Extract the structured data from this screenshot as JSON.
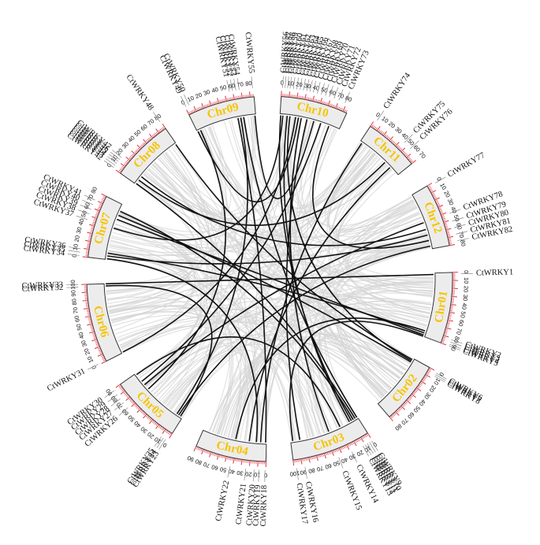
{
  "colors": {
    "chr_fill": "#ececec",
    "chr_stroke": "#333333",
    "chr_label": "#f5c400",
    "ticks": "#d9333f",
    "link_background": "#d4d4d4",
    "link_highlight": "#111111",
    "gene_line": "#888888"
  },
  "chromosomes": [
    {
      "name": "Chr01",
      "length": 90
    },
    {
      "name": "Chr02",
      "length": 80
    },
    {
      "name": "Chr03",
      "length": 100
    },
    {
      "name": "Chr04",
      "length": 90
    },
    {
      "name": "Chr05",
      "length": 90
    },
    {
      "name": "Chr06",
      "length": 100
    },
    {
      "name": "Chr07",
      "length": 80
    },
    {
      "name": "Chr08",
      "length": 80
    },
    {
      "name": "Chr09",
      "length": 85
    },
    {
      "name": "Chr10",
      "length": 85
    },
    {
      "name": "Chr11",
      "length": 70
    },
    {
      "name": "Chr12",
      "length": 80
    }
  ],
  "genes": [
    {
      "name": "CtWRKY1",
      "chr": "Chr01",
      "pos": 2
    },
    {
      "name": "CtWRKY2",
      "chr": "Chr01",
      "pos": 82
    },
    {
      "name": "CtWRKY3",
      "chr": "Chr01",
      "pos": 85
    },
    {
      "name": "CtWRKY4",
      "chr": "Chr01",
      "pos": 88
    },
    {
      "name": "CtWRKY5",
      "chr": "Chr01",
      "pos": 90
    },
    {
      "name": "CtWRKY6",
      "chr": "Chr02",
      "pos": 2
    },
    {
      "name": "CtWRKY7",
      "chr": "Chr02",
      "pos": 4
    },
    {
      "name": "CtWRKY8",
      "chr": "Chr02",
      "pos": 6
    },
    {
      "name": "CtWRKY9",
      "chr": "Chr03",
      "pos": 1
    },
    {
      "name": "CtWRKY10",
      "chr": "Chr03",
      "pos": 4
    },
    {
      "name": "CtWRKY11",
      "chr": "Chr03",
      "pos": 7
    },
    {
      "name": "CtWRKY12",
      "chr": "Chr03",
      "pos": 10
    },
    {
      "name": "CtWRKY13",
      "chr": "Chr03",
      "pos": 13
    },
    {
      "name": "CtWRKY14",
      "chr": "Chr03",
      "pos": 28
    },
    {
      "name": "CtWRKY15",
      "chr": "Chr03",
      "pos": 45
    },
    {
      "name": "CtWRKY16",
      "chr": "Chr03",
      "pos": 87
    },
    {
      "name": "CtWRKY17",
      "chr": "Chr03",
      "pos": 97
    },
    {
      "name": "CtWRKY18",
      "chr": "Chr04",
      "pos": 1
    },
    {
      "name": "CtWRKY19",
      "chr": "Chr04",
      "pos": 8
    },
    {
      "name": "CtWRKY20",
      "chr": "Chr04",
      "pos": 14
    },
    {
      "name": "CtWRKY21",
      "chr": "Chr04",
      "pos": 24
    },
    {
      "name": "CtWRKY22",
      "chr": "Chr04",
      "pos": 43
    },
    {
      "name": "CtWRKY23",
      "chr": "Chr05",
      "pos": 3
    },
    {
      "name": "CtWRKY24",
      "chr": "Chr05",
      "pos": 6
    },
    {
      "name": "CtWRKY25",
      "chr": "Chr05",
      "pos": 9
    },
    {
      "name": "CtWRKY26",
      "chr": "Chr05",
      "pos": 62
    },
    {
      "name": "CtWRKY27",
      "chr": "Chr05",
      "pos": 70
    },
    {
      "name": "CtWRKY28",
      "chr": "Chr05",
      "pos": 76
    },
    {
      "name": "CtWRKY29",
      "chr": "Chr05",
      "pos": 82
    },
    {
      "name": "CtWRKY30",
      "chr": "Chr05",
      "pos": 88
    },
    {
      "name": "CtWRKY31",
      "chr": "Chr06",
      "pos": 1
    },
    {
      "name": "CtWRKY32",
      "chr": "Chr06",
      "pos": 97
    },
    {
      "name": "CtWRKY33",
      "chr": "Chr06",
      "pos": 100
    },
    {
      "name": "CtWRKY34",
      "chr": "Chr07",
      "pos": 1
    },
    {
      "name": "CtWRKY35",
      "chr": "Chr07",
      "pos": 5
    },
    {
      "name": "CtWRKY36",
      "chr": "Chr07",
      "pos": 9
    },
    {
      "name": "CtWRKY37",
      "chr": "Chr07",
      "pos": 45
    },
    {
      "name": "CtWRKY38",
      "chr": "Chr07",
      "pos": 52
    },
    {
      "name": "CtWRKY39",
      "chr": "Chr07",
      "pos": 58
    },
    {
      "name": "CtWRKY40",
      "chr": "Chr07",
      "pos": 64
    },
    {
      "name": "CtWRKY41",
      "chr": "Chr07",
      "pos": 70
    },
    {
      "name": "CtWRKY42",
      "chr": "Chr08",
      "pos": 1
    },
    {
      "name": "CtWRKY43",
      "chr": "Chr08",
      "pos": 4
    },
    {
      "name": "CtWRKY44",
      "chr": "Chr08",
      "pos": 7
    },
    {
      "name": "CtWRKY45",
      "chr": "Chr08",
      "pos": 10
    },
    {
      "name": "CtWRKY46",
      "chr": "Chr08",
      "pos": 13
    },
    {
      "name": "CtWRKY47",
      "chr": "Chr08",
      "pos": 16
    },
    {
      "name": "CtWRKY48",
      "chr": "Chr08",
      "pos": 79
    },
    {
      "name": "CtWRKY49",
      "chr": "Chr09",
      "pos": 1
    },
    {
      "name": "CtWRKY50",
      "chr": "Chr09",
      "pos": 5
    },
    {
      "name": "CtWRKY51",
      "chr": "Chr09",
      "pos": 56
    },
    {
      "name": "CtWRKY52",
      "chr": "Chr09",
      "pos": 60
    },
    {
      "name": "CtWRKY53",
      "chr": "Chr09",
      "pos": 64
    },
    {
      "name": "CtWRKY54",
      "chr": "Chr09",
      "pos": 68
    },
    {
      "name": "CtWRKY55",
      "chr": "Chr09",
      "pos": 84
    },
    {
      "name": "CtWRKY56",
      "chr": "Chr10",
      "pos": 1
    },
    {
      "name": "CtWRKY57",
      "chr": "Chr10",
      "pos": 4
    },
    {
      "name": "CtWRKY58",
      "chr": "Chr10",
      "pos": 7
    },
    {
      "name": "CtWRKY59",
      "chr": "Chr10",
      "pos": 10
    },
    {
      "name": "CtWRKY60",
      "chr": "Chr10",
      "pos": 14
    },
    {
      "name": "CtWRKY61",
      "chr": "Chr10",
      "pos": 18
    },
    {
      "name": "CtWRKY62",
      "chr": "Chr10",
      "pos": 22
    },
    {
      "name": "CtWRKY63",
      "chr": "Chr10",
      "pos": 26
    },
    {
      "name": "CtWRKY64",
      "chr": "Chr10",
      "pos": 30
    },
    {
      "name": "CtWRKY65",
      "chr": "Chr10",
      "pos": 34
    },
    {
      "name": "CtWRKY66",
      "chr": "Chr10",
      "pos": 38
    },
    {
      "name": "CtWRKY67",
      "chr": "Chr10",
      "pos": 43
    },
    {
      "name": "CtWRKY68",
      "chr": "Chr10",
      "pos": 48
    },
    {
      "name": "CtWRKY69",
      "chr": "Chr10",
      "pos": 53
    },
    {
      "name": "CtWRKY70",
      "chr": "Chr10",
      "pos": 58
    },
    {
      "name": "CtWRKY71",
      "chr": "Chr10",
      "pos": 64
    },
    {
      "name": "CtWRKY72",
      "chr": "Chr10",
      "pos": 70
    },
    {
      "name": "CtWRKY73",
      "chr": "Chr10",
      "pos": 78
    },
    {
      "name": "CtWRKY74",
      "chr": "Chr11",
      "pos": 3
    },
    {
      "name": "CtWRKY75",
      "chr": "Chr11",
      "pos": 45
    },
    {
      "name": "CtWRKY76",
      "chr": "Chr11",
      "pos": 55
    },
    {
      "name": "CtWRKY77",
      "chr": "Chr12",
      "pos": 2
    },
    {
      "name": "CtWRKY78",
      "chr": "Chr12",
      "pos": 42
    },
    {
      "name": "CtWRKY79",
      "chr": "Chr12",
      "pos": 52
    },
    {
      "name": "CtWRKY80",
      "chr": "Chr12",
      "pos": 60
    },
    {
      "name": "CtWRKY81",
      "chr": "Chr12",
      "pos": 68
    },
    {
      "name": "CtWRKY82",
      "chr": "Chr12",
      "pos": 76
    }
  ],
  "links": [
    [
      "CtWRKY1",
      "CtWRKY33"
    ],
    [
      "CtWRKY2",
      "CtWRKY22"
    ],
    [
      "CtWRKY3",
      "CtWRKY36"
    ],
    [
      "CtWRKY5",
      "CtWRKY17"
    ],
    [
      "CtWRKY6",
      "CtWRKY48"
    ],
    [
      "CtWRKY8",
      "CtWRKY40"
    ],
    [
      "CtWRKY9",
      "CtWRKY54"
    ],
    [
      "CtWRKY11",
      "CtWRKY41"
    ],
    [
      "CtWRKY13",
      "CtWRKY59"
    ],
    [
      "CtWRKY14",
      "CtWRKY30"
    ],
    [
      "CtWRKY16",
      "CtWRKY66"
    ],
    [
      "CtWRKY18",
      "CtWRKY52"
    ],
    [
      "CtWRKY19",
      "CtWRKY74"
    ],
    [
      "CtWRKY20",
      "CtWRKY34"
    ],
    [
      "CtWRKY21",
      "CtWRKY76"
    ],
    [
      "CtWRKY23",
      "CtWRKY32"
    ],
    [
      "CtWRKY24",
      "CtWRKY82"
    ],
    [
      "CtWRKY26",
      "CtWRKY50"
    ],
    [
      "CtWRKY27",
      "CtWRKY78"
    ],
    [
      "CtWRKY28",
      "CtWRKY70"
    ],
    [
      "CtWRKY31",
      "CtWRKY62"
    ],
    [
      "CtWRKY35",
      "CtWRKY80"
    ],
    [
      "CtWRKY37",
      "CtWRKY57"
    ],
    [
      "CtWRKY39",
      "CtWRKY4"
    ],
    [
      "CtWRKY42",
      "CtWRKY10"
    ],
    [
      "CtWRKY44",
      "CtWRKY75"
    ],
    [
      "CtWRKY46",
      "CtWRKY79"
    ],
    [
      "CtWRKY49",
      "CtWRKY63"
    ],
    [
      "CtWRKY53",
      "CtWRKY25"
    ],
    [
      "CtWRKY55",
      "CtWRKY68"
    ],
    [
      "CtWRKY56",
      "CtWRKY12"
    ],
    [
      "CtWRKY60",
      "CtWRKY7"
    ],
    [
      "CtWRKY64",
      "CtWRKY15"
    ],
    [
      "CtWRKY72",
      "CtWRKY81"
    ]
  ]
}
